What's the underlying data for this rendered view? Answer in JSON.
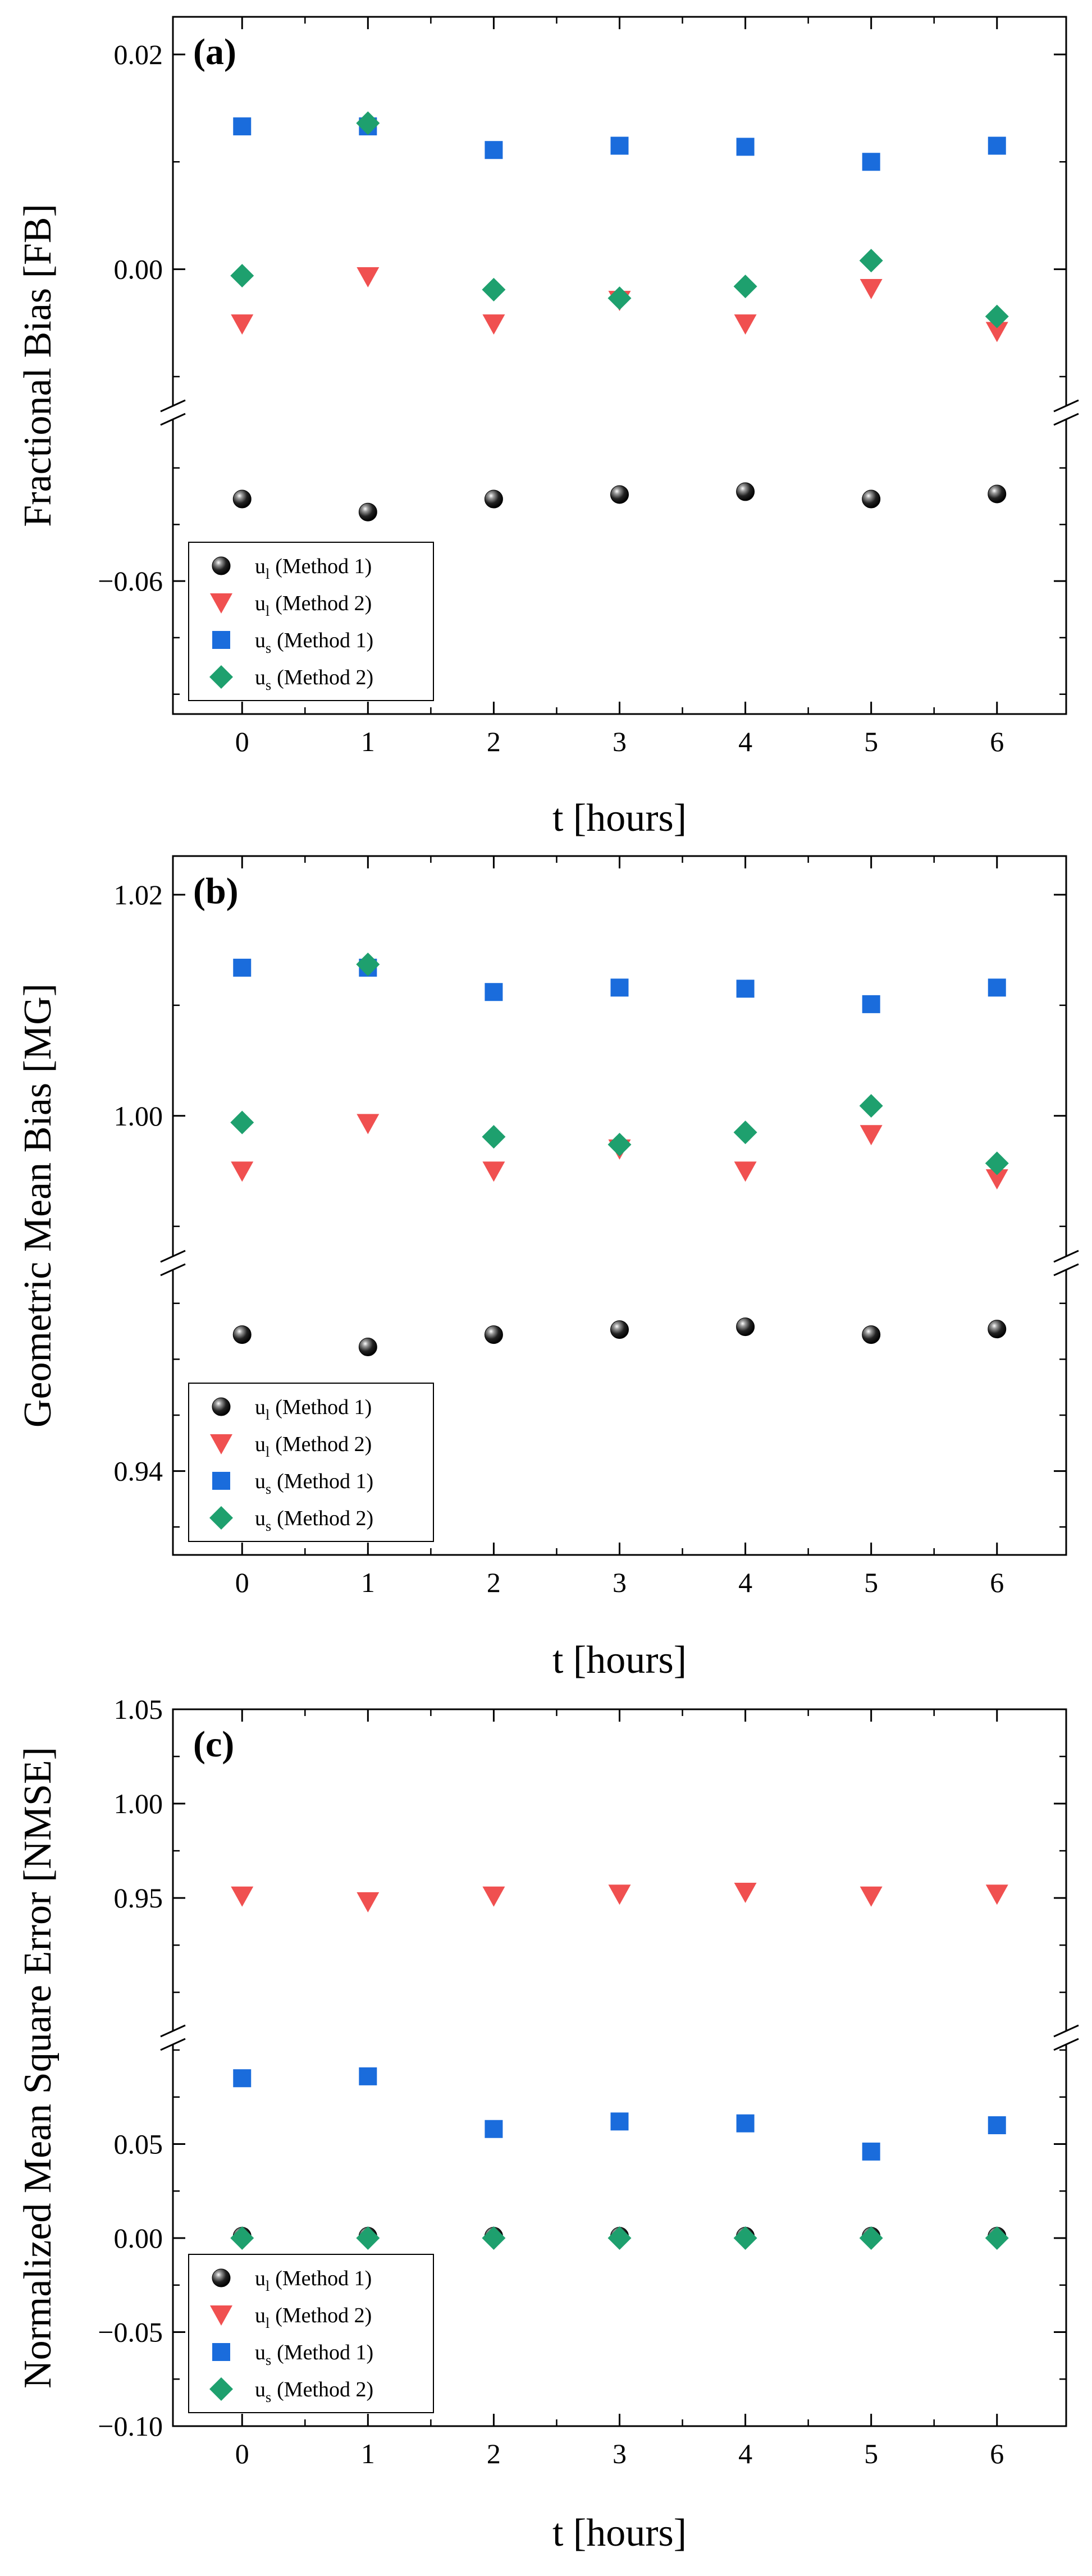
{
  "figure": {
    "colors": {
      "ul_method1": "#000000",
      "ul_method2": "#f05050",
      "us_method1": "#1a6cdc",
      "us_method2": "#1ea06e"
    }
  },
  "chart_data": [
    {
      "type": "scatter",
      "panel_label": "(a)",
      "ylabel": "Fractional Bias [FB]",
      "xlabel": "t [hours]",
      "x": [
        0,
        1,
        2,
        3,
        4,
        5,
        6
      ],
      "xticks": [
        "0",
        "1",
        "2",
        "3",
        "4",
        "5",
        "6"
      ],
      "xlim": [
        -0.55,
        6.55
      ],
      "broken_axis": true,
      "upper_segment": {
        "ylim": [
          -0.0122,
          0.0235
        ],
        "ticks": [
          0.0,
          0.02
        ],
        "tick_labels": [
          "0.00",
          "0.02"
        ],
        "minor_step": 0.01
      },
      "lower_segment": {
        "ylim": [
          -0.0835,
          -0.0325
        ],
        "ticks": [
          -0.06
        ],
        "tick_labels": [
          "−0.06"
        ],
        "minor_step": 0.01
      },
      "legend": {
        "position": "bottom-left",
        "entries": [
          {
            "symbol": "u",
            "sub": "l",
            "text": "(Method 1)"
          },
          {
            "symbol": "u",
            "sub": "l",
            "text": "(Method 2)"
          },
          {
            "symbol": "u",
            "sub": "s",
            "text": "(Method 1)"
          },
          {
            "symbol": "u",
            "sub": "s",
            "text": "(Method 2)"
          }
        ]
      },
      "series": [
        {
          "name": "u_l (Method 1)",
          "marker": "sphere",
          "color": "#000000",
          "values": [
            -0.0455,
            -0.0478,
            -0.0455,
            -0.0447,
            -0.0442,
            -0.0455,
            -0.0446
          ]
        },
        {
          "name": "u_l (Method 2)",
          "marker": "triangle-down",
          "color": "#f05050",
          "values": [
            -0.0051,
            -0.0007,
            -0.0051,
            -0.0029,
            -0.0051,
            -0.0018,
            -0.0058
          ]
        },
        {
          "name": "u_s (Method 1)",
          "marker": "square",
          "color": "#1a6cdc",
          "values": [
            0.0133,
            0.0133,
            0.0111,
            0.0115,
            0.0114,
            0.01,
            0.0115
          ]
        },
        {
          "name": "u_s (Method 2)",
          "marker": "diamond",
          "color": "#1ea06e",
          "values": [
            -0.0006,
            0.0136,
            -0.0019,
            -0.0027,
            -0.0016,
            0.0008,
            -0.0044
          ]
        }
      ]
    },
    {
      "type": "scatter",
      "panel_label": "(b)",
      "ylabel": "Geometric Mean Bias [MG]",
      "xlabel": "t [hours]",
      "x": [
        0,
        1,
        2,
        3,
        4,
        5,
        6
      ],
      "xticks": [
        "0",
        "1",
        "2",
        "3",
        "4",
        "5",
        "6"
      ],
      "xlim": [
        -0.55,
        6.55
      ],
      "broken_axis": true,
      "upper_segment": {
        "ylim": [
          0.9878,
          1.0235
        ],
        "ticks": [
          1.0,
          1.02
        ],
        "tick_labels": [
          "1.00",
          "1.02"
        ],
        "minor_step": 0.01
      },
      "lower_segment": {
        "ylim": [
          0.925,
          0.975
        ],
        "ticks": [
          0.94
        ],
        "tick_labels": [
          "0.94"
        ],
        "minor_step": 0.01
      },
      "legend": {
        "position": "bottom-left",
        "entries": [
          {
            "symbol": "u",
            "sub": "l",
            "text": "(Method 1)"
          },
          {
            "symbol": "u",
            "sub": "l",
            "text": "(Method 2)"
          },
          {
            "symbol": "u",
            "sub": "s",
            "text": "(Method 1)"
          },
          {
            "symbol": "u",
            "sub": "s",
            "text": "(Method 2)"
          }
        ]
      },
      "series": [
        {
          "name": "u_l (Method 1)",
          "marker": "sphere",
          "color": "#000000",
          "values": [
            0.9644,
            0.9622,
            0.9644,
            0.9653,
            0.9658,
            0.9644,
            0.9654
          ]
        },
        {
          "name": "u_l (Method 2)",
          "marker": "triangle-down",
          "color": "#f05050",
          "values": [
            0.995,
            0.9993,
            0.995,
            0.997,
            0.995,
            0.9983,
            0.9943
          ]
        },
        {
          "name": "u_s (Method 1)",
          "marker": "square",
          "color": "#1a6cdc",
          "values": [
            1.0134,
            1.0134,
            1.0112,
            1.0116,
            1.0115,
            1.0101,
            1.0116
          ]
        },
        {
          "name": "u_s (Method 2)",
          "marker": "diamond",
          "color": "#1ea06e",
          "values": [
            0.9994,
            1.0137,
            0.9981,
            0.9974,
            0.9985,
            1.0009,
            0.9957
          ]
        }
      ]
    },
    {
      "type": "scatter",
      "panel_label": "(c)",
      "ylabel": "Normalized Mean Square Error [NMSE]",
      "xlabel": "t [hours]",
      "x": [
        0,
        1,
        2,
        3,
        4,
        5,
        6
      ],
      "xticks": [
        "0",
        "1",
        "2",
        "3",
        "4",
        "5",
        "6"
      ],
      "xlim": [
        -0.55,
        6.55
      ],
      "broken_axis": true,
      "upper_segment": {
        "ylim": [
          0.8825,
          1.05
        ],
        "ticks": [
          0.95,
          1.0,
          1.05
        ],
        "tick_labels": [
          "0.95",
          "1.00",
          "1.05"
        ],
        "minor_step": 0.025
      },
      "lower_segment": {
        "ylim": [
          -0.1,
          0.1
        ],
        "ticks": [
          -0.1,
          -0.05,
          0.0,
          0.05
        ],
        "tick_labels": [
          "−0.10",
          "−0.05",
          "0.00",
          "0.05"
        ],
        "minor_step": 0.025
      },
      "legend": {
        "position": "bottom-left",
        "entries": [
          {
            "symbol": "u",
            "sub": "l",
            "text": "(Method 1)"
          },
          {
            "symbol": "u",
            "sub": "l",
            "text": "(Method 2)"
          },
          {
            "symbol": "u",
            "sub": "s",
            "text": "(Method 1)"
          },
          {
            "symbol": "u",
            "sub": "s",
            "text": "(Method 2)"
          }
        ]
      },
      "series": [
        {
          "name": "u_l (Method 1)",
          "marker": "sphere",
          "color": "#000000",
          "values": [
            0.001,
            0.001,
            0.001,
            0.001,
            0.001,
            0.001,
            0.001
          ]
        },
        {
          "name": "u_l (Method 2)",
          "marker": "triangle-down",
          "color": "#f05050",
          "values": [
            0.951,
            0.948,
            0.951,
            0.952,
            0.953,
            0.951,
            0.952
          ]
        },
        {
          "name": "u_s (Method 1)",
          "marker": "square",
          "color": "#1a6cdc",
          "values": [
            0.085,
            0.086,
            0.058,
            0.062,
            0.061,
            0.046,
            0.06
          ]
        },
        {
          "name": "u_s (Method 2)",
          "marker": "diamond",
          "color": "#1ea06e",
          "values": [
            0.0,
            0.0,
            0.0,
            0.0,
            0.0,
            0.0,
            0.0
          ]
        }
      ]
    }
  ]
}
